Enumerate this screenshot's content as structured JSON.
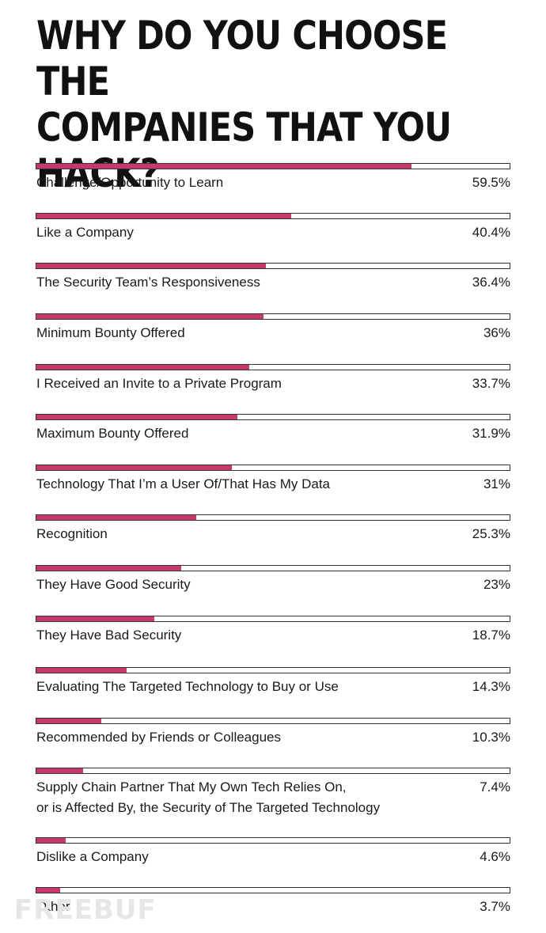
{
  "header": {
    "title_line1": "WHY DO YOU CHOOSE THE",
    "title_line2": "COMPANIES THAT YOU HACK?"
  },
  "colors": {
    "bar_fill": "#c8386d",
    "bar_track": "#ffffff",
    "bar_border": "#333333"
  },
  "watermark": "FREEBUF",
  "chart_data": {
    "type": "bar",
    "title": "WHY DO YOU CHOOSE THE COMPANIES THAT YOU HACK?",
    "orientation": "horizontal",
    "categories": [
      "Challenge/Opportunity to Learn",
      "Like a Company",
      "The Security Team’s Responsiveness",
      "Minimum Bounty Offered",
      "I Received an Invite to a Private Program",
      "Maximum Bounty Offered",
      "Technology That I’m a User Of/That Has My Data",
      "Recognition",
      "They Have Good Security",
      "They Have Bad Security",
      "Evaluating The Targeted Technology to Buy or Use",
      "Recommended by Friends or Colleagues",
      "Supply Chain Partner That My Own Tech Relies On,\nor is Affected By, the Security of The Targeted Technology",
      "Dislike a Company",
      "Other"
    ],
    "labels": [
      "59.5%",
      "40.4%",
      "36.4%",
      "36%",
      "33.7%",
      "31.9%",
      "31%",
      "25.3%",
      "23%",
      "18.7%",
      "14.3%",
      "10.3%",
      "7.4%",
      "4.6%",
      "3.7%"
    ],
    "values": [
      59.5,
      40.4,
      36.4,
      36,
      33.7,
      31.9,
      31,
      25.3,
      23,
      18.7,
      14.3,
      10.3,
      7.4,
      4.6,
      3.7
    ],
    "xlim": [
      0,
      75
    ]
  }
}
